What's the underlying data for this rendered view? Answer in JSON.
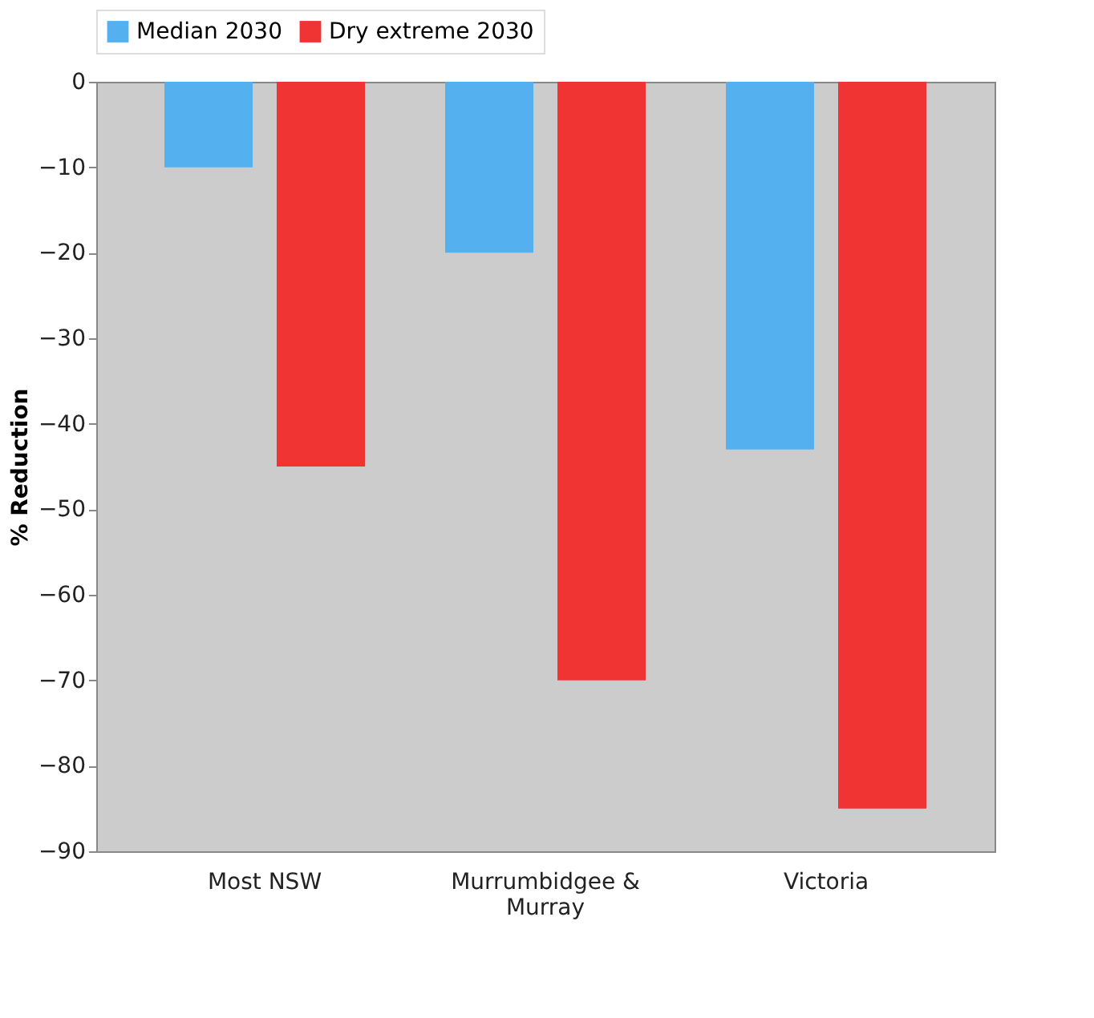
{
  "chart_data": {
    "type": "bar",
    "ylabel": "% Reduction",
    "categories": [
      "Most NSW",
      "Murrumbidgee & Murray",
      "Victoria"
    ],
    "series": [
      {
        "name": "Median 2030",
        "color": "#55b0f0",
        "values": [
          -10,
          -20,
          -43
        ]
      },
      {
        "name": "Dry extreme 2030",
        "color": "#f03333",
        "values": [
          -45,
          -70,
          -85
        ]
      }
    ],
    "ylim": [
      -90,
      0
    ],
    "yticks": [
      -90,
      -80,
      -70,
      -60,
      -50,
      -40,
      -30,
      -20,
      -10,
      0
    ],
    "grid": false,
    "legend": "top"
  }
}
